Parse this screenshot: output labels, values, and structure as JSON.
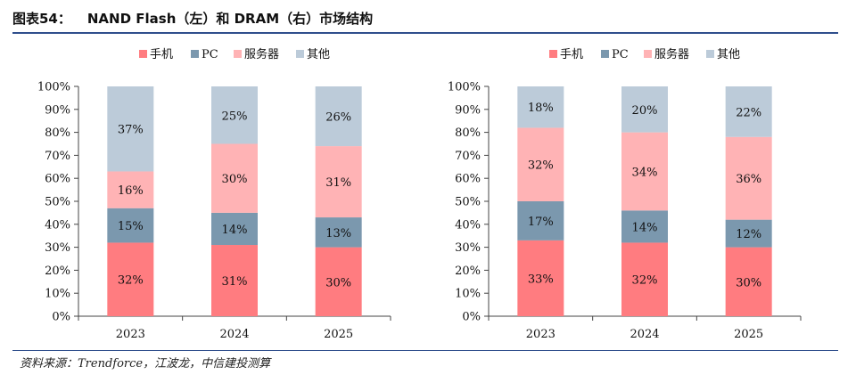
{
  "header": {
    "figure_label": "图表54：",
    "title": "NAND Flash（左）和 DRAM（右）市场结构"
  },
  "footer": {
    "source": "资料来源：Trendforce，江波龙，中信建投测算"
  },
  "colors": {
    "手机": "#ff7c80",
    "PC": "#7b98ae",
    "服务器": "#ffb3b5",
    "其他": "#bccbd9",
    "rule": "#2f4e8c"
  },
  "chart_data": [
    {
      "type": "bar",
      "stacked": true,
      "categories": [
        "2023",
        "2024",
        "2025"
      ],
      "series": [
        {
          "name": "手机",
          "values": [
            32,
            31,
            30
          ],
          "labels": [
            "32%",
            "31%",
            "30%"
          ]
        },
        {
          "name": "PC",
          "values": [
            15,
            14,
            13
          ],
          "labels": [
            "15%",
            "14%",
            "13%"
          ]
        },
        {
          "name": "服务器",
          "values": [
            16,
            30,
            31
          ],
          "labels": [
            "16%",
            "30%",
            "31%"
          ]
        },
        {
          "name": "其他",
          "values": [
            37,
            25,
            26
          ],
          "labels": [
            "37%",
            "25%",
            "26%"
          ]
        }
      ],
      "yticks": [
        "0%",
        "10%",
        "20%",
        "30%",
        "40%",
        "50%",
        "60%",
        "70%",
        "80%",
        "90%",
        "100%"
      ],
      "ylim": [
        0,
        100
      ],
      "legend_position": "top",
      "grid": false
    },
    {
      "type": "bar",
      "stacked": true,
      "categories": [
        "2023",
        "2024",
        "2025"
      ],
      "series": [
        {
          "name": "手机",
          "values": [
            33,
            32,
            30
          ],
          "labels": [
            "33%",
            "32%",
            "30%"
          ]
        },
        {
          "name": "PC",
          "values": [
            17,
            14,
            12
          ],
          "labels": [
            "17%",
            "14%",
            "12%"
          ]
        },
        {
          "name": "服务器",
          "values": [
            32,
            34,
            36
          ],
          "labels": [
            "32%",
            "34%",
            "36%"
          ]
        },
        {
          "name": "其他",
          "values": [
            18,
            20,
            22
          ],
          "labels": [
            "18%",
            "20%",
            "22%"
          ]
        }
      ],
      "yticks": [
        "0%",
        "10%",
        "20%",
        "30%",
        "40%",
        "50%",
        "60%",
        "70%",
        "80%",
        "90%",
        "100%"
      ],
      "ylim": [
        0,
        100
      ],
      "legend_position": "top",
      "grid": false
    }
  ]
}
